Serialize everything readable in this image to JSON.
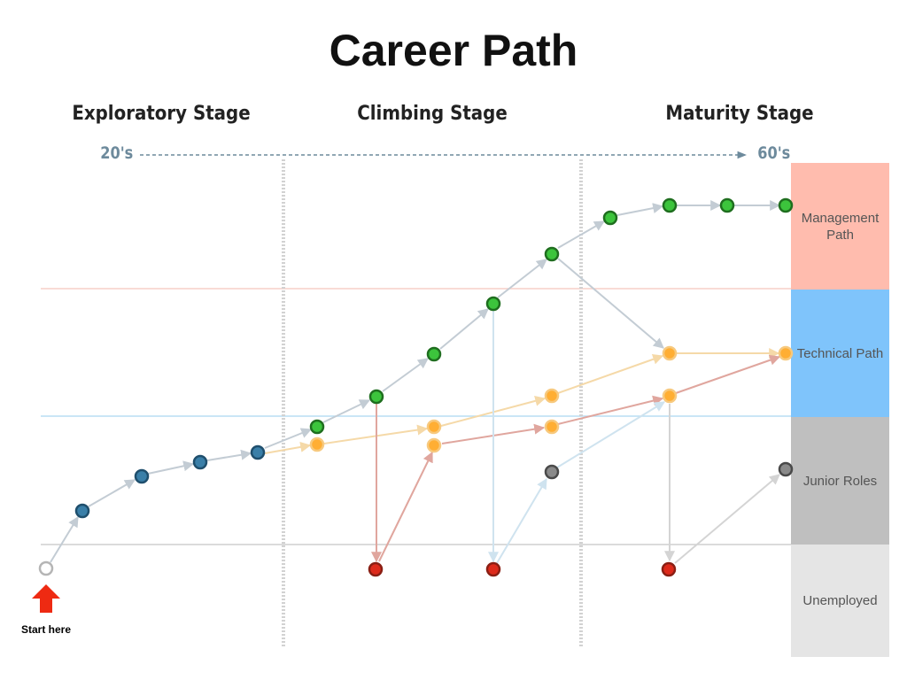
{
  "title": "Career Path",
  "stages": [
    "Exploratory Stage",
    "Climbing Stage",
    "Maturity Stage"
  ],
  "age_start": "20's",
  "age_end": "60's",
  "bands": [
    {
      "label": "Management\nPath",
      "color": "#ffbcae"
    },
    {
      "label": "Technical Path",
      "color": "#7fc4fb"
    },
    {
      "label": "Junior Roles",
      "color": "#bfbfbf"
    },
    {
      "label": "Unemployed",
      "color": "#e5e5e5"
    }
  ],
  "start_label": "Start here",
  "colors": {
    "management": "#3cc43c",
    "technical": "#ffae33",
    "exploratory": "#2c6f97",
    "junior": "#8a8a8a",
    "unemployed": "#dd2a1b",
    "start": "#d0d0d0",
    "start_arrow": "#ee2a12"
  }
}
